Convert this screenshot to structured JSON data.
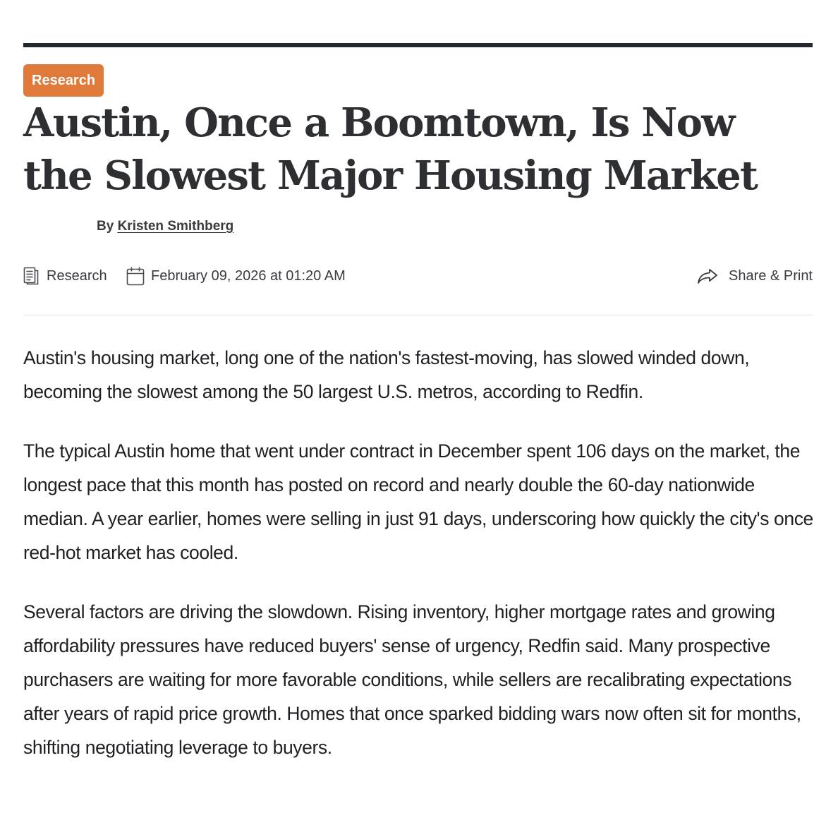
{
  "article": {
    "category_badge": "Research",
    "headline": "Austin, Once a Boomtown, Is Now the Slowest Major Housing Market",
    "byline_prefix": "By ",
    "author": "Kristen Smithberg",
    "meta": {
      "category": "Research",
      "category_icon": "document-icon",
      "date": "February 09, 2026 at 01:20 AM",
      "date_icon": "calendar-icon",
      "share_label": "Share & Print",
      "share_icon": "share-arrow-icon"
    },
    "paragraphs": [
      "Austin's housing market, long one of the nation's fastest-moving, has slowed winded down, becoming the slowest among the 50 largest U.S. metros, according to Redfin.",
      "The typical Austin home that went under contract in December spent 106 days on the market, the longest pace that this month has posted on record and nearly double the 60-day nationwide median. A year earlier, homes were selling in just 91 days, underscoring how quickly the city's once red-hot market has cooled.",
      "Several factors are driving the slowdown. Rising inventory, higher mortgage rates and growing affordability pressures have reduced buyers' sense of urgency, Redfin said. Many prospective purchasers are waiting for more favorable conditions, while sellers are recalibrating expectations after years of rapid price growth. Homes that once sparked bidding wars now often sit for months, shifting negotiating leverage to buyers."
    ]
  },
  "colors": {
    "badge_background": "#e07a3a",
    "top_rule": "#22262d",
    "headline_text": "#2e2f33",
    "body_text": "#1f2024"
  }
}
